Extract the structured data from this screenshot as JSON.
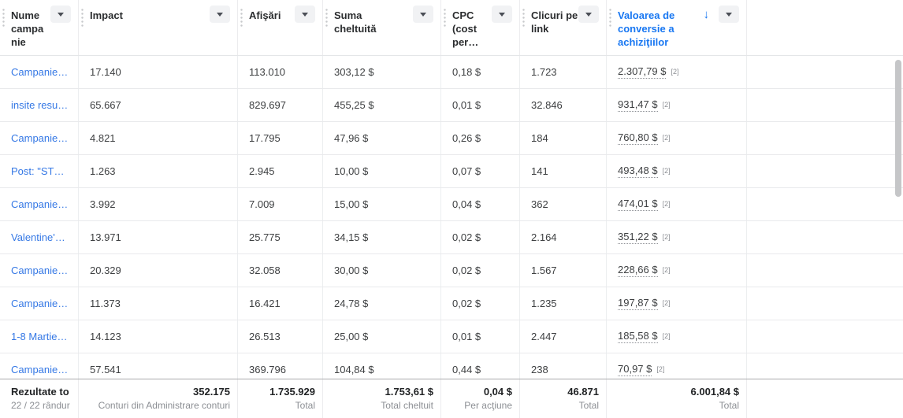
{
  "table": {
    "columns": [
      {
        "id": "nume",
        "label": "Nume campanie"
      },
      {
        "id": "impact",
        "label": "Impact"
      },
      {
        "id": "afisari",
        "label": "Afişări"
      },
      {
        "id": "suma",
        "label": "Suma cheltuită"
      },
      {
        "id": "cpc",
        "label": "CPC (cost per…"
      },
      {
        "id": "clicuri",
        "label": "Clicuri pe link"
      },
      {
        "id": "valoare",
        "label": "Valoarea de conversie a achiziţiilor",
        "sorted": "desc"
      }
    ],
    "rows": [
      [
        "Campanie…",
        "17.140",
        "113.010",
        "303,12 $",
        "0,18 $",
        "1.723",
        "2.307,79 $"
      ],
      [
        "insite resu…",
        "65.667",
        "829.697",
        "455,25 $",
        "0,01 $",
        "32.846",
        "931,47 $"
      ],
      [
        "Campanie…",
        "4.821",
        "17.795",
        "47,96 $",
        "0,26 $",
        "184",
        "760,80 $"
      ],
      [
        "Post: \"ST…",
        "1.263",
        "2.945",
        "10,00 $",
        "0,07 $",
        "141",
        "493,48 $"
      ],
      [
        "Campanie…",
        "3.992",
        "7.009",
        "15,00 $",
        "0,04 $",
        "362",
        "474,01 $"
      ],
      [
        "Valentine'…",
        "13.971",
        "25.775",
        "34,15 $",
        "0,02 $",
        "2.164",
        "351,22 $"
      ],
      [
        "Campanie…",
        "20.329",
        "32.058",
        "30,00 $",
        "0,02 $",
        "1.567",
        "228,66 $"
      ],
      [
        "Campanie…",
        "11.373",
        "16.421",
        "24,78 $",
        "0,02 $",
        "1.235",
        "197,87 $"
      ],
      [
        "1-8 Martie…",
        "14.123",
        "26.513",
        "25,00 $",
        "0,01 $",
        "2.447",
        "185,58 $"
      ],
      [
        "Campanie…",
        "57.541",
        "369.796",
        "104,84 $",
        "0,44 $",
        "238",
        "70,97 $"
      ]
    ],
    "footnote_marker": "[2]",
    "footer": {
      "results_label": "Rezultate to",
      "rows_label": "22 / 22 rândur",
      "impact": {
        "value": "352.175",
        "label": "Conturi din Administrare conturi"
      },
      "afisari": {
        "value": "1.735.929",
        "label": "Total"
      },
      "suma": {
        "value": "1.753,61 $",
        "label": "Total cheltuit"
      },
      "cpc": {
        "value": "0,04 $",
        "label": "Per acţiune"
      },
      "clicuri": {
        "value": "46.871",
        "label": "Total"
      },
      "valoare": {
        "value": "6.001,84 $",
        "label": "Total"
      }
    }
  },
  "icons": {
    "sort_desc": "↓"
  },
  "colors": {
    "link_blue": "#3578e5",
    "sorted_header_blue": "#1877f2",
    "header_text": "#2b2d2f",
    "body_text": "#3e4042",
    "row_border": "#e9eaec",
    "footer_border": "#ababad",
    "footer_label_gray": "#8c8f94",
    "dropdown_button_bg": "#f1f2f4",
    "scrollbar_thumb": "#c5c6c8"
  }
}
